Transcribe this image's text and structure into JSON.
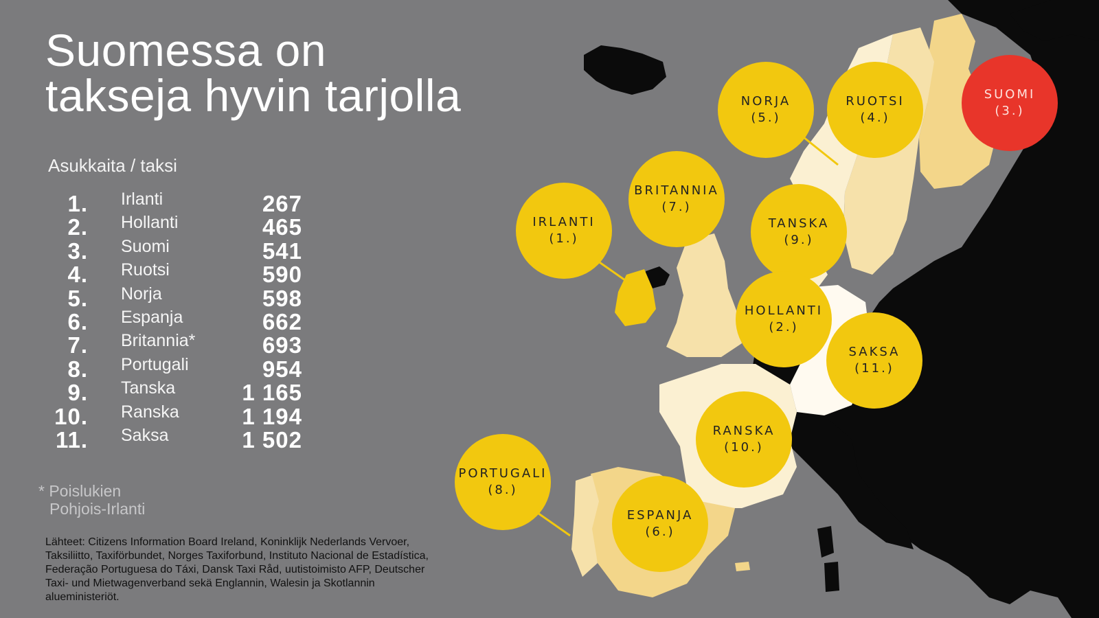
{
  "title_lines": [
    "Suomessa on",
    "takseja hyvin tarjolla"
  ],
  "subtitle": "Asukkaita / taksi",
  "ranking": [
    {
      "rank": "1.",
      "country": "Irlanti",
      "value": "267"
    },
    {
      "rank": "2.",
      "country": "Hollanti",
      "value": "465"
    },
    {
      "rank": "3.",
      "country": "Suomi",
      "value": "541"
    },
    {
      "rank": "4.",
      "country": "Ruotsi",
      "value": "590"
    },
    {
      "rank": "5.",
      "country": "Norja",
      "value": "598"
    },
    {
      "rank": "6.",
      "country": "Espanja",
      "value": "662"
    },
    {
      "rank": "7.",
      "country": "Britannia*",
      "value": "693"
    },
    {
      "rank": "8.",
      "country": "Portugali",
      "value": "954"
    },
    {
      "rank": "9.",
      "country": "Tanska",
      "value": "1 165"
    },
    {
      "rank": "10.",
      "country": "Ranska",
      "value": "1 194"
    },
    {
      "rank": "11.",
      "country": "Saksa",
      "value": "1 502"
    }
  ],
  "footnote_lines": [
    "* Poislukien",
    "Pohjois-Irlanti"
  ],
  "sources": "Lähteet: Citizens Information Board Ireland, Koninklijk Nederlands Vervoer,  Taksiliitto, Taxiförbundet, Norges Taxiforbund, Instituto Nacional de Estadística, Federação Portuguesa do Táxi, Dansk Taxi Råd, uutistoimisto AFP, Deutscher Taxi- und Mietwagenverband sekä Englannin, Walesin ja Skotlannin alueministeriöt.",
  "bubbles": [
    {
      "id": "irlanti",
      "label": "IRLANTI",
      "rank": "(1.)",
      "color": "#f2c80f"
    },
    {
      "id": "britannia",
      "label": "BRITANNIA",
      "rank": "(7.)",
      "color": "#f2c80f"
    },
    {
      "id": "norja",
      "label": "NORJA",
      "rank": "(5.)",
      "color": "#f2c80f"
    },
    {
      "id": "ruotsi",
      "label": "RUOTSI",
      "rank": "(4.)",
      "color": "#f2c80f"
    },
    {
      "id": "suomi",
      "label": "SUOMI",
      "rank": "(3.)",
      "color": "#e8352a"
    },
    {
      "id": "tanska",
      "label": "TANSKA",
      "rank": "(9.)",
      "color": "#f2c80f"
    },
    {
      "id": "hollanti",
      "label": "HOLLANTI",
      "rank": "(2.)",
      "color": "#f2c80f"
    },
    {
      "id": "saksa",
      "label": "SAKSA",
      "rank": "(11.)",
      "color": "#f2c80f"
    },
    {
      "id": "ranska",
      "label": "RANSKA",
      "rank": "(10.)",
      "color": "#f2c80f"
    },
    {
      "id": "portugali",
      "label": "PORTUGALI",
      "rank": "(8.)",
      "color": "#f2c80f"
    },
    {
      "id": "espanja",
      "label": "ESPANJA",
      "rank": "(6.)",
      "color": "#f2c80f"
    }
  ],
  "colors": {
    "background": "#7b7b7d",
    "other_land": "#0b0b0b",
    "bubble": "#f2c80f",
    "bubble_highlight": "#e8352a",
    "shade_darkest": "#f2c80f",
    "shade_dark": "#f3d68a",
    "shade_mid": "#f6e1aa",
    "shade_light": "#fbf0d2",
    "shade_lightest": "#fffaf0"
  }
}
